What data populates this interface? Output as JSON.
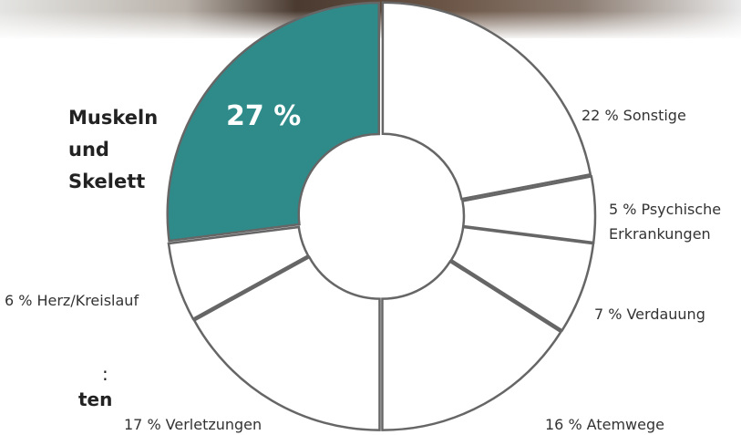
{
  "chart_data": {
    "type": "donut",
    "categories": [
      "Sonstige",
      "Psychische Erkrankungen",
      "Verdauung",
      "Atemwege",
      "Verletzungen",
      "Herz/Kreislauf",
      "Muskeln und Skelett"
    ],
    "values": [
      22,
      5,
      7,
      16,
      17,
      6,
      27
    ],
    "value_labels": [
      "22 %",
      "5 %",
      "7 %",
      "16 %",
      "17 %",
      "6 %",
      "27 %"
    ],
    "colors": [
      "#ffffff",
      "#ffffff",
      "#ffffff",
      "#ffffff",
      "#ffffff",
      "#ffffff",
      "#2e8b8a"
    ],
    "edge_texts": [
      ":",
      "ten"
    ]
  }
}
